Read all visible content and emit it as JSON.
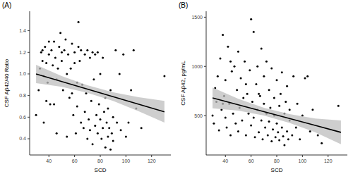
{
  "chart_data": [
    {
      "type": "scatter",
      "title": "(A)",
      "x_label": "SCD",
      "y_label": "CSF Aβ42/40 Ratio",
      "xlim": [
        25,
        135
      ],
      "ylim": [
        0.25,
        1.58
      ],
      "xticks": [
        40,
        60,
        80,
        100,
        120
      ],
      "yticks": [
        {
          "value": 0.4,
          "label": "0.4"
        },
        {
          "value": 0.6,
          "label": "0.6"
        },
        {
          "value": 0.8,
          "label": "0.8"
        },
        {
          "value": 1.0,
          "label": "1.0"
        },
        {
          "value": 1.2,
          "label": "1.2"
        },
        {
          "value": 1.4,
          "label": "1.4"
        }
      ],
      "grid": false,
      "series": [
        {
          "type": "scatter",
          "color": "#000000",
          "marker": "circle",
          "x": [
            30,
            32,
            33,
            34,
            35,
            36,
            37,
            38,
            39,
            40,
            40,
            41,
            42,
            43,
            44,
            45,
            46,
            47,
            48,
            49,
            50,
            50,
            51,
            52,
            53,
            54,
            55,
            56,
            57,
            58,
            59,
            60,
            60,
            61,
            62,
            63,
            64,
            65,
            65,
            66,
            67,
            68,
            68,
            69,
            70,
            70,
            71,
            72,
            72,
            73,
            74,
            74,
            75,
            76,
            76,
            77,
            78,
            78,
            79,
            80,
            80,
            81,
            82,
            82,
            83,
            84,
            84,
            85,
            86,
            86,
            87,
            88,
            88,
            89,
            90,
            90,
            92,
            93,
            95,
            96,
            98,
            100,
            102,
            104,
            106,
            108,
            112,
            130,
            46,
            44,
            38,
            54,
            58,
            62,
            36,
            35,
            63
          ],
          "values": [
            0.62,
            0.85,
            1.05,
            1.2,
            1.12,
            0.98,
            1.25,
            1.1,
            0.92,
            1.3,
            1.18,
            0.72,
            1.22,
            1.08,
            1.3,
            1.15,
            0.95,
            1.05,
            1.25,
            1.38,
            1.12,
            1.2,
            0.85,
            1.22,
            1.32,
            1.0,
            1.18,
            0.78,
            1.05,
            1.28,
            0.62,
            1.2,
            1.1,
            0.45,
            0.7,
            1.25,
            1.12,
            0.55,
            1.22,
            0.9,
            0.5,
            0.65,
            1.18,
            0.82,
            1.22,
            0.4,
            0.58,
            1.15,
            0.48,
            0.75,
            1.2,
            0.35,
            0.95,
            0.52,
            1.18,
            0.62,
            0.45,
            1.2,
            0.72,
            0.58,
            1.0,
            0.4,
            0.5,
            1.15,
            0.65,
            0.32,
            0.78,
            0.55,
            0.42,
            0.68,
            0.5,
            0.3,
            0.85,
            0.45,
            0.38,
            0.6,
            1.22,
            0.55,
            1.0,
            0.48,
            1.18,
            0.42,
            0.55,
            0.85,
            1.22,
            0.68,
            0.5,
            0.98,
            0.45,
            0.72,
            0.75,
            0.42,
            0.82,
            0.92,
            0.55,
            1.22,
            1.48
          ]
        },
        {
          "type": "line",
          "color": "#000000",
          "line_style": "solid",
          "x": [
            30,
            50,
            70,
            90,
            110,
            130
          ],
          "values": [
            1.0,
            0.93,
            0.86,
            0.79,
            0.72,
            0.65
          ],
          "lower": [
            0.915,
            0.88,
            0.825,
            0.75,
            0.655,
            0.55
          ],
          "upper": [
            1.085,
            0.98,
            0.895,
            0.83,
            0.785,
            0.75
          ]
        }
      ]
    },
    {
      "type": "scatter",
      "title": "(B)",
      "x_label": "SCD",
      "y_label": "CSF Aβ42, pg/mL",
      "xlim": [
        25,
        135
      ],
      "ylim": [
        100,
        1560
      ],
      "xticks": [
        40,
        60,
        80,
        100,
        120
      ],
      "yticks": [
        500,
        1000,
        1500
      ],
      "grid": false,
      "series": [
        {
          "type": "scatter",
          "color": "#000000",
          "marker": "circle",
          "x": [
            30,
            31,
            32,
            33,
            34,
            35,
            36,
            37,
            38,
            39,
            40,
            40,
            41,
            42,
            43,
            44,
            45,
            46,
            47,
            48,
            49,
            50,
            50,
            51,
            52,
            53,
            54,
            55,
            56,
            57,
            58,
            59,
            60,
            60,
            61,
            62,
            63,
            64,
            65,
            65,
            66,
            67,
            68,
            68,
            69,
            70,
            70,
            71,
            72,
            72,
            73,
            74,
            74,
            75,
            76,
            76,
            77,
            78,
            78,
            79,
            80,
            80,
            81,
            82,
            82,
            83,
            84,
            84,
            85,
            86,
            86,
            87,
            88,
            88,
            89,
            90,
            90,
            92,
            93,
            95,
            96,
            98,
            100,
            102,
            104,
            106,
            108,
            112,
            115,
            128,
            44,
            56,
            38,
            62,
            66
          ],
          "values": [
            500,
            420,
            780,
            640,
            900,
            350,
            1080,
            560,
            1320,
            700,
            480,
            860,
            380,
            1200,
            620,
            300,
            950,
            520,
            1000,
            420,
            760,
            1150,
            340,
            580,
            880,
            450,
            680,
            1050,
            300,
            720,
            520,
            960,
            1480,
            400,
            640,
            1350,
            280,
            820,
            560,
            1000,
            330,
            700,
            450,
            1180,
            260,
            620,
            900,
            380,
            520,
            1050,
            300,
            760,
            440,
            580,
            240,
            980,
            360,
            680,
            500,
            280,
            860,
            420,
            330,
            600,
            250,
            720,
            380,
            940,
            290,
            520,
            200,
            640,
            340,
            800,
            260,
            450,
            560,
            300,
            900,
            380,
            620,
            260,
            500,
            880,
            900,
            340,
            560,
            300,
            220,
            600,
            1050,
            820,
            620,
            480,
            720
          ]
        },
        {
          "type": "line",
          "color": "#000000",
          "line_style": "solid",
          "x": [
            30,
            50,
            70,
            90,
            110,
            130
          ],
          "values": [
            680,
            610,
            540,
            470,
            400,
            330
          ],
          "lower": [
            575,
            550,
            500,
            425,
            330,
            210
          ],
          "upper": [
            785,
            670,
            580,
            515,
            470,
            450
          ]
        }
      ]
    }
  ]
}
